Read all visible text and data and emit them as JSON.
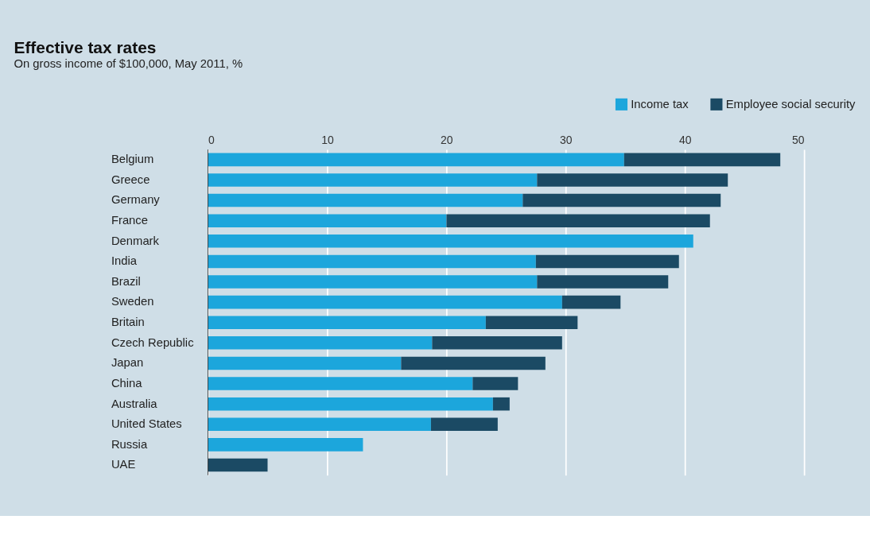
{
  "chart_data": {
    "type": "bar",
    "orientation": "horizontal",
    "stacked": true,
    "title": "Effective tax rates",
    "subtitle": "On gross income of $100,000, May 2011, %",
    "categories": [
      "Belgium",
      "Greece",
      "Germany",
      "France",
      "Denmark",
      "India",
      "Brazil",
      "Sweden",
      "Britain",
      "Czech Republic",
      "Japan",
      "China",
      "Australia",
      "United States",
      "Russia",
      "UAE"
    ],
    "series": [
      {
        "name": "Income tax",
        "color": "#1ca6dc",
        "values": [
          34.9,
          27.6,
          26.4,
          20.0,
          40.7,
          27.5,
          27.6,
          29.7,
          23.3,
          18.8,
          16.2,
          22.2,
          23.9,
          18.7,
          13.0,
          0
        ]
      },
      {
        "name": "Employee social security",
        "color": "#1b4a64",
        "values": [
          13.1,
          16.0,
          16.6,
          22.1,
          0,
          12.0,
          11.0,
          4.9,
          7.7,
          10.9,
          12.1,
          3.8,
          1.4,
          5.6,
          0,
          5.0
        ]
      }
    ],
    "xlim": [
      0,
      50
    ],
    "xticks": [
      0,
      10,
      20,
      30,
      40,
      50
    ],
    "grid": "x",
    "legend": "top right"
  }
}
